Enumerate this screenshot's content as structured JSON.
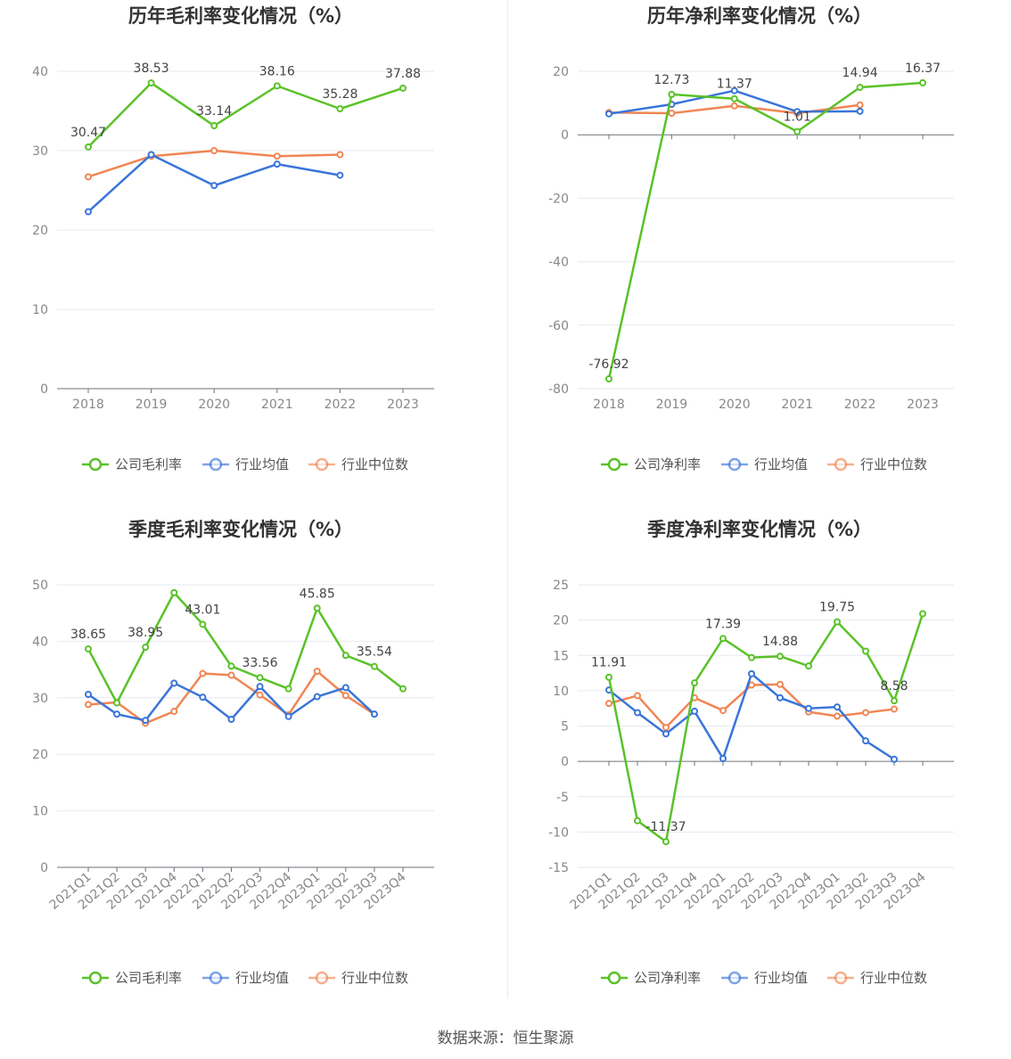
{
  "source_label": "数据来源：恒生聚源",
  "colors": {
    "company": "#5ac229",
    "avg": "#3a75d9",
    "median": "#f08654"
  },
  "chart_data": [
    {
      "type": "line",
      "title": "历年毛利率变化情况（%）",
      "x": [
        "2018",
        "2019",
        "2020",
        "2021",
        "2022",
        "2023"
      ],
      "ylim": [
        0,
        40
      ],
      "yticks": [
        0,
        10,
        20,
        30,
        40
      ],
      "legend": [
        "公司毛利率",
        "行业均值",
        "行业中位数"
      ],
      "series": [
        {
          "name": "公司毛利率",
          "values": [
            30.47,
            38.53,
            33.14,
            38.16,
            35.28,
            37.88
          ],
          "labels": [
            "30.47",
            "38.53",
            "33.14",
            "38.16",
            "35.28",
            "37.88"
          ]
        },
        {
          "name": "行业均值",
          "values": [
            22.3,
            29.5,
            25.6,
            28.3,
            26.9,
            null
          ]
        },
        {
          "name": "行业中位数",
          "values": [
            26.7,
            29.3,
            30.0,
            29.3,
            29.5,
            null
          ]
        }
      ]
    },
    {
      "type": "line",
      "title": "历年净利率变化情况（%）",
      "x": [
        "2018",
        "2019",
        "2020",
        "2021",
        "2022",
        "2023"
      ],
      "ylim": [
        -80,
        20
      ],
      "yticks": [
        -80,
        -60,
        -40,
        -20,
        0,
        20
      ],
      "legend": [
        "公司净利率",
        "行业均值",
        "行业中位数"
      ],
      "series": [
        {
          "name": "公司净利率",
          "values": [
            -76.92,
            12.73,
            11.37,
            1.01,
            14.94,
            16.37
          ],
          "labels": [
            "-76.92",
            "12.73",
            "11.37",
            "1.01",
            "14.94",
            "16.37"
          ]
        },
        {
          "name": "行业均值",
          "values": [
            6.6,
            9.6,
            13.9,
            7.3,
            7.4,
            null
          ]
        },
        {
          "name": "行业中位数",
          "values": [
            7.0,
            6.8,
            9.1,
            6.8,
            9.4,
            null
          ]
        }
      ]
    },
    {
      "type": "line",
      "title": "季度毛利率变化情况（%）",
      "x": [
        "2021Q1",
        "2021Q2",
        "2021Q3",
        "2021Q4",
        "2022Q1",
        "2022Q2",
        "2022Q3",
        "2022Q4",
        "2023Q1",
        "2023Q2",
        "2023Q3",
        "2023Q4"
      ],
      "ylim": [
        0,
        50
      ],
      "yticks": [
        0,
        10,
        20,
        30,
        40,
        50
      ],
      "legend": [
        "公司毛利率",
        "行业均值",
        "行业中位数"
      ],
      "series": [
        {
          "name": "公司毛利率",
          "values": [
            38.65,
            29.1,
            38.95,
            48.6,
            43.01,
            35.6,
            33.56,
            31.6,
            45.85,
            37.5,
            35.54,
            31.6
          ],
          "labels": [
            "38.65",
            "",
            "38.95",
            "",
            "43.01",
            "",
            "33.56",
            "",
            "45.85",
            "",
            "35.54",
            ""
          ]
        },
        {
          "name": "行业均值",
          "values": [
            30.6,
            27.1,
            26.0,
            32.6,
            30.1,
            26.2,
            32.0,
            26.7,
            30.2,
            31.8,
            27.1,
            null
          ]
        },
        {
          "name": "行业中位数",
          "values": [
            28.8,
            29.2,
            25.5,
            27.6,
            34.3,
            34.0,
            30.5,
            27.0,
            34.7,
            30.4,
            27.1,
            null
          ]
        }
      ]
    },
    {
      "type": "line",
      "title": "季度净利率变化情况（%）",
      "x": [
        "2021Q1",
        "2021Q2",
        "2021Q3",
        "2021Q4",
        "2022Q1",
        "2022Q2",
        "2022Q3",
        "2022Q4",
        "2023Q1",
        "2023Q2",
        "2023Q3",
        "2023Q4"
      ],
      "ylim": [
        -15,
        25
      ],
      "yticks": [
        -15,
        -10,
        -5,
        0,
        5,
        10,
        15,
        20,
        25
      ],
      "legend": [
        "公司净利率",
        "行业均值",
        "行业中位数"
      ],
      "series": [
        {
          "name": "公司净利率",
          "values": [
            11.91,
            -8.4,
            -11.37,
            11.1,
            17.39,
            14.7,
            14.88,
            13.5,
            19.75,
            15.6,
            8.58,
            20.9
          ],
          "labels": [
            "11.91",
            "",
            "-11.37",
            "",
            "17.39",
            "",
            "14.88",
            "",
            "19.75",
            "",
            "8.58",
            ""
          ]
        },
        {
          "name": "行业均值",
          "values": [
            10.1,
            6.9,
            3.9,
            7.1,
            0.4,
            12.4,
            9.0,
            7.5,
            7.7,
            2.9,
            0.3,
            null
          ]
        },
        {
          "name": "行业中位数",
          "values": [
            8.2,
            9.3,
            4.8,
            9.0,
            7.2,
            10.8,
            10.9,
            7.0,
            6.4,
            6.9,
            7.4,
            null
          ]
        }
      ]
    }
  ]
}
